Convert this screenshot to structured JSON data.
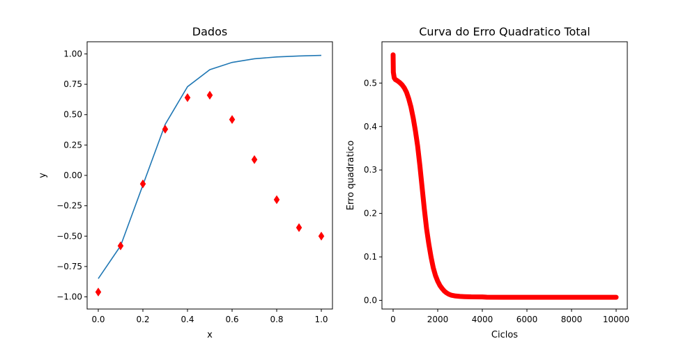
{
  "chart_data": [
    {
      "type": "line",
      "title": "Dados",
      "xlabel": "x",
      "ylabel": "y",
      "xlim": [
        -0.05,
        1.05
      ],
      "ylim": [
        -1.1,
        1.1
      ],
      "xticks": [
        0.0,
        0.2,
        0.4,
        0.6,
        0.8,
        1.0
      ],
      "xtick_labels": [
        "0.0",
        "0.2",
        "0.4",
        "0.6",
        "0.8",
        "1.0"
      ],
      "yticks": [
        -1.0,
        -0.75,
        -0.5,
        -0.25,
        0.0,
        0.25,
        0.5,
        0.75,
        1.0
      ],
      "ytick_labels": [
        "−1.00",
        "−0.75",
        "−0.50",
        "−0.25",
        "0.00",
        "0.25",
        "0.50",
        "0.75",
        "1.00"
      ],
      "grid": false,
      "series": [
        {
          "kind": "line",
          "color": "#1f77b4",
          "x": [
            0.0,
            0.1,
            0.2,
            0.3,
            0.4,
            0.5,
            0.6,
            0.7,
            0.8,
            0.9,
            1.0
          ],
          "y": [
            -0.85,
            -0.58,
            -0.08,
            0.42,
            0.73,
            0.87,
            0.93,
            0.96,
            0.975,
            0.983,
            0.988
          ]
        },
        {
          "kind": "scatter",
          "marker": "diamond",
          "color": "#ff0000",
          "x": [
            0.0,
            0.1,
            0.2,
            0.3,
            0.4,
            0.5,
            0.6,
            0.7,
            0.8,
            0.9,
            1.0
          ],
          "y": [
            -0.96,
            -0.58,
            -0.07,
            0.38,
            0.64,
            0.66,
            0.46,
            0.13,
            -0.2,
            -0.43,
            -0.5
          ]
        }
      ]
    },
    {
      "type": "line",
      "title": "Curva do Erro Quadratico Total",
      "xlabel": "Ciclos",
      "ylabel": "Erro quadratico",
      "xlim": [
        -500,
        10500
      ],
      "ylim": [
        -0.02,
        0.595
      ],
      "xticks": [
        0,
        2000,
        4000,
        6000,
        8000,
        10000
      ],
      "xtick_labels": [
        "0",
        "2000",
        "4000",
        "6000",
        "8000",
        "10000"
      ],
      "yticks": [
        0.0,
        0.1,
        0.2,
        0.3,
        0.4,
        0.5
      ],
      "ytick_labels": [
        "0.0",
        "0.1",
        "0.2",
        "0.3",
        "0.4",
        "0.5"
      ],
      "grid": false,
      "series": [
        {
          "kind": "thick-line",
          "color": "#ff0000",
          "x": [
            0,
            10,
            50,
            100,
            200,
            300,
            400,
            500,
            600,
            700,
            800,
            900,
            1000,
            1100,
            1200,
            1300,
            1400,
            1500,
            1600,
            1700,
            1800,
            1900,
            2000,
            2100,
            2200,
            2300,
            2400,
            2500,
            2600,
            2700,
            2800,
            3000,
            3200,
            3500,
            4000,
            4200,
            5000,
            6000,
            7000,
            8000,
            9000,
            10000
          ],
          "y": [
            0.565,
            0.525,
            0.512,
            0.508,
            0.505,
            0.501,
            0.496,
            0.489,
            0.479,
            0.464,
            0.445,
            0.42,
            0.39,
            0.355,
            0.31,
            0.26,
            0.21,
            0.165,
            0.13,
            0.1,
            0.075,
            0.057,
            0.044,
            0.034,
            0.027,
            0.021,
            0.017,
            0.014,
            0.012,
            0.011,
            0.01,
            0.009,
            0.0085,
            0.008,
            0.0078,
            0.0072,
            0.0071,
            0.007,
            0.007,
            0.007,
            0.007,
            0.007
          ]
        }
      ]
    }
  ]
}
